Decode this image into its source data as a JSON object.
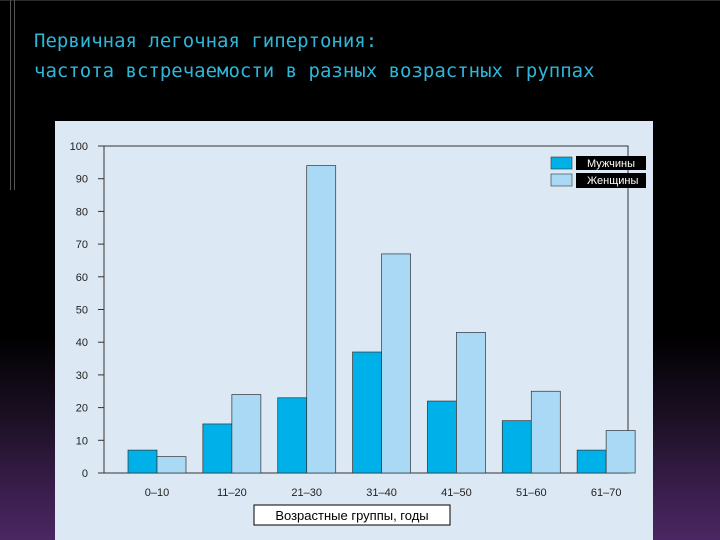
{
  "slide": {
    "title_line1": "Первичная легочная гипертония:",
    "title_line2": "частота встречаемости в разных возрастных группах"
  },
  "colors": {
    "men": "#00b0e8",
    "women": "#a9d9f5",
    "panel": "#dce8f4",
    "title": "#2fb6d9"
  },
  "chart_data": {
    "type": "bar",
    "categories": [
      "0–10",
      "11–20",
      "21–30",
      "31–40",
      "41–50",
      "51–60",
      "61–70"
    ],
    "series": [
      {
        "name": "Мужчины",
        "values": [
          7,
          15,
          23,
          37,
          22,
          16,
          7
        ]
      },
      {
        "name": "Женщины",
        "values": [
          5,
          24,
          94,
          67,
          43,
          25,
          13
        ]
      }
    ],
    "xlabel": "Возрастные группы, годы",
    "ylabel": "",
    "ylim": [
      0,
      100
    ],
    "yticks": [
      0,
      10,
      20,
      30,
      40,
      50,
      60,
      70,
      80,
      90,
      100
    ],
    "legend_position": "top-right",
    "grid": false
  }
}
